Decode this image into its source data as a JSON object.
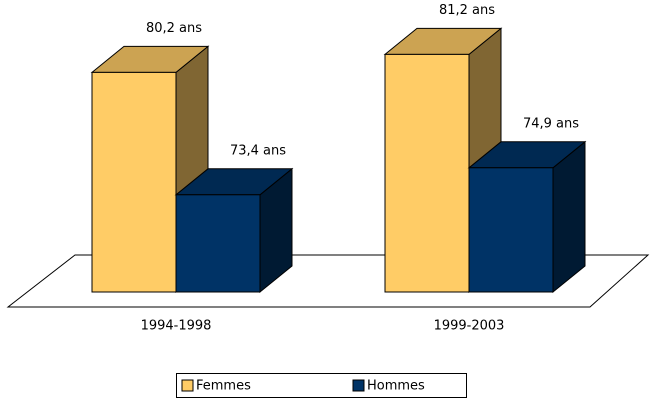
{
  "chart_data": {
    "type": "bar3d",
    "categories": [
      "1994-1998",
      "1999-2003"
    ],
    "series": [
      {
        "name": "Femmes",
        "color": "#ffcc66",
        "values": [
          80.2,
          81.2
        ],
        "value_labels": [
          "80,2 ans",
          "81,2 ans"
        ]
      },
      {
        "name": "Hommes",
        "color": "#003366",
        "values": [
          73.4,
          74.9
        ],
        "value_labels": [
          "73,4 ans",
          "74,9 ans"
        ]
      }
    ],
    "ylim": [
      68,
      82
    ],
    "legend": "bottom"
  }
}
